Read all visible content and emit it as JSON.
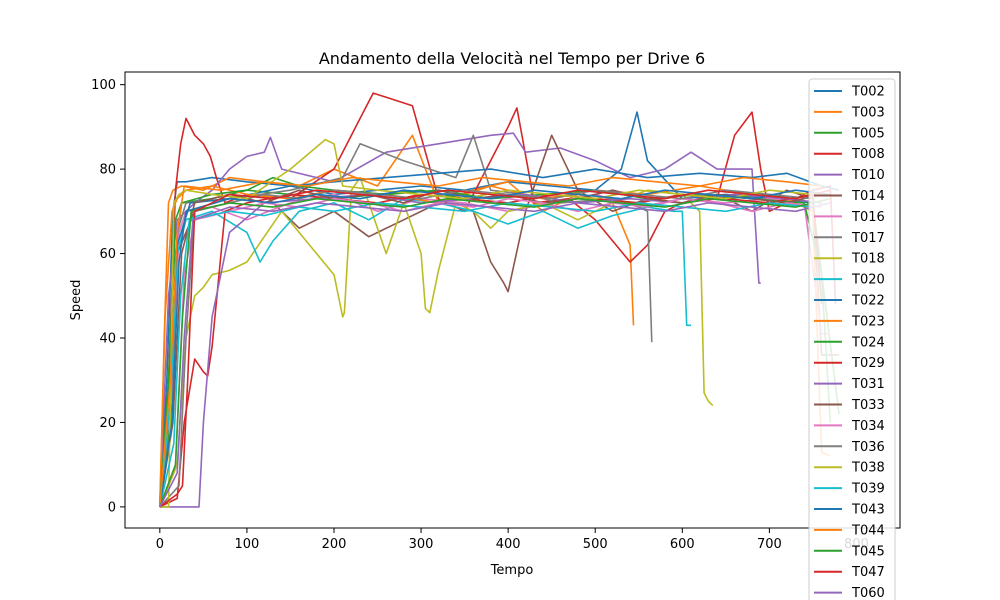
{
  "chart_data": {
    "type": "line",
    "title": "Andamento della Velocità nel Tempo per Drive 6",
    "xlabel": "Tempo",
    "ylabel": "Speed",
    "xlim": [
      -40,
      850
    ],
    "ylim": [
      -5,
      103
    ],
    "xticks": [
      0,
      100,
      200,
      300,
      400,
      500,
      600,
      700,
      800
    ],
    "xtick_labels": [
      "0",
      "100",
      "200",
      "300",
      "400",
      "500",
      "600",
      "700",
      "800"
    ],
    "yticks": [
      0,
      20,
      40,
      60,
      80,
      100
    ],
    "grid": false,
    "legend_position": "top-right",
    "palette": [
      "#1f77b4",
      "#ff7f0e",
      "#2ca02c",
      "#d62728",
      "#9467bd",
      "#8c564b",
      "#e377c2",
      "#7f7f7f",
      "#bcbd22",
      "#17becf"
    ],
    "series": [
      {
        "name": "T002",
        "x": [
          0,
          8,
          15,
          20,
          30,
          60,
          100,
          150,
          200,
          250,
          300,
          350,
          400,
          450,
          500,
          530,
          548,
          560,
          600,
          650,
          700,
          750
        ],
        "y": [
          0,
          30,
          70,
          77,
          77,
          78,
          77,
          76,
          74,
          75,
          76,
          75,
          77,
          76,
          75,
          80,
          93.5,
          82,
          73,
          74,
          73,
          72
        ]
      },
      {
        "name": "T003",
        "x": [
          0,
          5,
          10,
          15,
          25,
          50,
          80,
          120,
          160,
          200,
          250,
          290,
          320,
          360,
          400,
          440,
          480,
          520,
          540,
          544
        ],
        "y": [
          0,
          40,
          72,
          75,
          76,
          75,
          78,
          77,
          76,
          80,
          76,
          88,
          72,
          75,
          77,
          70,
          74,
          72,
          62,
          43
        ]
      },
      {
        "name": "T005",
        "x": [
          0,
          12,
          18,
          25,
          60,
          100,
          150,
          200,
          250,
          300,
          350,
          400,
          450,
          500,
          550,
          600,
          650,
          700,
          750,
          780
        ],
        "y": [
          0,
          20,
          60,
          72,
          73,
          75,
          74,
          73,
          74,
          75,
          73,
          72,
          74,
          73,
          72,
          74,
          73,
          74,
          72,
          22
        ]
      },
      {
        "name": "T008",
        "x": [
          0,
          10,
          18,
          24,
          30,
          40,
          50,
          58,
          65,
          75,
          100,
          150,
          200,
          230,
          245,
          260,
          290,
          320,
          350,
          400,
          410,
          430,
          470,
          500,
          520,
          540,
          560,
          580,
          600,
          640,
          660,
          680,
          690,
          700,
          720,
          750,
          770,
          776
        ],
        "y": [
          0,
          30,
          75,
          86,
          92,
          88,
          86,
          83,
          78,
          72,
          74,
          73,
          80,
          92,
          98,
          97,
          95,
          73,
          70,
          90,
          94.5,
          72,
          73,
          68,
          63,
          58,
          62,
          70,
          72,
          73,
          88,
          93.5,
          80,
          70,
          72,
          75,
          76,
          48
        ]
      },
      {
        "name": "T010",
        "x": [
          0,
          10,
          20,
          40,
          60,
          80,
          100,
          120,
          127,
          140,
          200,
          260,
          320,
          380,
          406,
          420,
          460,
          500,
          540,
          580,
          610,
          640,
          680,
          688,
          690
        ],
        "y": [
          0,
          50,
          68,
          72,
          75,
          80,
          83,
          84,
          87.5,
          80,
          77,
          84,
          86,
          88,
          88.5,
          84,
          85,
          82,
          78,
          80,
          84,
          80,
          80,
          53,
          53
        ]
      },
      {
        "name": "T014",
        "x": [
          0,
          12,
          20,
          40,
          80,
          120,
          160,
          200,
          240,
          280,
          320,
          360,
          380,
          395,
          400,
          420,
          450,
          480,
          520,
          560,
          600,
          640,
          680,
          720,
          750,
          760,
          780
        ],
        "y": [
          0,
          25,
          60,
          70,
          72,
          74,
          66,
          70,
          64,
          68,
          72,
          70,
          58,
          53,
          51,
          70,
          88,
          75,
          70,
          73,
          72,
          74,
          70,
          75,
          73,
          36,
          36
        ]
      },
      {
        "name": "T016",
        "x": [
          0,
          15,
          22,
          30,
          60,
          100,
          150,
          200,
          250,
          300,
          350,
          400,
          450,
          500,
          550,
          600,
          650,
          700,
          740,
          760,
          770
        ],
        "y": [
          0,
          30,
          65,
          70,
          71,
          68,
          72,
          74,
          70,
          73,
          72,
          70,
          72,
          74,
          71,
          73,
          72,
          73,
          72,
          41,
          41
        ]
      },
      {
        "name": "T017",
        "x": [
          0,
          14,
          20,
          30,
          80,
          150,
          210,
          230,
          280,
          340,
          360,
          380,
          420,
          460,
          520,
          540,
          560,
          565
        ],
        "y": [
          0,
          20,
          65,
          72,
          73,
          75,
          78,
          86,
          82,
          78,
          88,
          75,
          74,
          72,
          73,
          72,
          70,
          39
        ]
      },
      {
        "name": "T018",
        "x": [
          0,
          20,
          30,
          40,
          50,
          60,
          80,
          100,
          140,
          180,
          200,
          210,
          212,
          220,
          230,
          260,
          280,
          300,
          305,
          310,
          320,
          340,
          360,
          380,
          400,
          440,
          480,
          520,
          560,
          600,
          620,
          625,
          630,
          635
        ],
        "y": [
          0,
          10,
          40,
          50,
          52,
          55,
          56,
          58,
          70,
          60,
          55,
          45,
          46,
          75,
          78,
          60,
          72,
          60,
          47,
          46,
          56,
          72,
          70,
          66,
          70,
          72,
          68,
          72,
          75,
          74,
          70,
          27,
          25,
          24
        ]
      },
      {
        "name": "T020",
        "x": [
          0,
          12,
          20,
          30,
          60,
          100,
          115,
          130,
          160,
          200,
          240,
          280,
          320,
          360,
          400,
          440,
          480,
          520,
          560,
          590,
          600,
          605,
          610
        ],
        "y": [
          0,
          25,
          60,
          68,
          70,
          65,
          58,
          63,
          70,
          72,
          68,
          73,
          72,
          70,
          67,
          70,
          66,
          69,
          71,
          70,
          70,
          43,
          43
        ]
      },
      {
        "name": "T022",
        "x": [
          0,
          12,
          20,
          35,
          80,
          150,
          200,
          260,
          320,
          380,
          440,
          500,
          560,
          620,
          680,
          720,
          760,
          780
        ],
        "y": [
          0,
          35,
          62,
          72,
          73,
          76,
          77,
          78,
          79,
          80,
          78,
          80,
          78,
          79,
          78,
          79,
          76,
          75
        ]
      },
      {
        "name": "T023",
        "x": [
          0,
          6,
          14,
          20,
          30,
          60,
          100,
          150,
          200,
          260,
          320,
          380,
          440,
          500,
          560,
          620,
          680,
          720,
          750,
          760,
          770
        ],
        "y": [
          0,
          45,
          70,
          73,
          75,
          76,
          74,
          73,
          75,
          74,
          72,
          76,
          73,
          75,
          74,
          76,
          74,
          73,
          70,
          13,
          12
        ]
      },
      {
        "name": "T024",
        "x": [
          0,
          10,
          18,
          25,
          60,
          100,
          130,
          160,
          200,
          260,
          320,
          380,
          440,
          500,
          560,
          620,
          680,
          740,
          760,
          770
        ],
        "y": [
          0,
          30,
          68,
          72,
          74,
          75,
          78,
          76,
          75,
          74,
          75,
          73,
          74,
          75,
          73,
          74,
          73,
          72,
          55,
          20
        ]
      },
      {
        "name": "T029",
        "x": [
          0,
          20,
          28,
          40,
          50,
          55,
          60,
          75,
          100,
          150,
          200,
          250,
          300,
          350,
          400,
          450,
          500,
          550,
          600,
          650,
          700,
          750,
          760
        ],
        "y": [
          0,
          2,
          20,
          35,
          32,
          31,
          38,
          70,
          72,
          74,
          73,
          72,
          74,
          73,
          72,
          74,
          73,
          72,
          74,
          73,
          72,
          74,
          48
        ]
      },
      {
        "name": "T031",
        "x": [
          0,
          25,
          35,
          45,
          50,
          60,
          80,
          120,
          180,
          240,
          300,
          360,
          420,
          480,
          540,
          600,
          660,
          720,
          760
        ],
        "y": [
          0,
          0,
          0,
          0,
          20,
          45,
          65,
          72,
          73,
          74,
          72,
          73,
          74,
          72,
          73,
          72,
          74,
          73,
          72
        ]
      },
      {
        "name": "T033",
        "x": [
          0,
          15,
          25,
          40,
          80,
          120,
          160,
          200,
          240,
          280,
          320,
          360,
          400,
          440,
          480,
          520,
          560,
          600,
          640,
          680,
          720,
          760
        ],
        "y": [
          0,
          20,
          60,
          72,
          74,
          72,
          75,
          73,
          74,
          72,
          75,
          73,
          74,
          72,
          73,
          75,
          73,
          72,
          74,
          73,
          72,
          74
        ]
      },
      {
        "name": "T034",
        "x": [
          0,
          18,
          28,
          40,
          80,
          120,
          160,
          200,
          240,
          280,
          320,
          360,
          400,
          440,
          480,
          520,
          560,
          600,
          640,
          680,
          720,
          760
        ],
        "y": [
          0,
          10,
          55,
          68,
          70,
          72,
          71,
          73,
          72,
          70,
          72,
          71,
          73,
          72,
          70,
          72,
          71,
          73,
          72,
          70,
          72,
          71
        ]
      },
      {
        "name": "T036",
        "x": [
          0,
          22,
          30,
          40,
          80,
          120,
          160,
          200,
          250,
          300,
          350,
          400,
          450,
          500,
          550,
          600,
          650,
          700,
          750
        ],
        "y": [
          0,
          5,
          40,
          70,
          72,
          74,
          73,
          75,
          74,
          73,
          75,
          74,
          73,
          75,
          74,
          73,
          75,
          74,
          73
        ]
      },
      {
        "name": "T038",
        "x": [
          0,
          10,
          16,
          22,
          30,
          60,
          100,
          150,
          190,
          200,
          210,
          250,
          300,
          350,
          400,
          450,
          500,
          550,
          600,
          650,
          700,
          750
        ],
        "y": [
          0,
          0,
          72,
          74,
          75,
          74,
          73,
          80,
          87,
          86,
          76,
          75,
          74,
          73,
          75,
          74,
          73,
          75,
          74,
          73,
          75,
          74
        ]
      },
      {
        "name": "T039",
        "x": [
          0,
          16,
          24,
          34,
          80,
          120,
          160,
          200,
          250,
          300,
          350,
          400,
          450,
          500,
          550,
          600,
          650,
          700,
          750
        ],
        "y": [
          0,
          15,
          50,
          68,
          70,
          69,
          71,
          70,
          72,
          71,
          70,
          72,
          71,
          70,
          72,
          71,
          70,
          72,
          71
        ]
      },
      {
        "name": "T043",
        "x": [
          0,
          14,
          22,
          30,
          80,
          130,
          180,
          230,
          280,
          330,
          380,
          430,
          480,
          530,
          580,
          630,
          680,
          730,
          770
        ],
        "y": [
          0,
          20,
          58,
          70,
          73,
          72,
          74,
          73,
          75,
          74,
          73,
          75,
          74,
          73,
          75,
          74,
          73,
          75,
          74
        ]
      },
      {
        "name": "T044",
        "x": [
          0,
          12,
          20,
          28,
          70,
          120,
          170,
          220,
          270,
          320,
          370,
          420,
          470,
          520,
          570,
          620,
          670,
          720,
          760
        ],
        "y": [
          0,
          30,
          65,
          76,
          75,
          77,
          76,
          78,
          77,
          76,
          78,
          77,
          76,
          78,
          77,
          76,
          78,
          77,
          76
        ]
      },
      {
        "name": "T045",
        "x": [
          0,
          18,
          26,
          36,
          80,
          130,
          180,
          230,
          280,
          330,
          380,
          430,
          480,
          530,
          580,
          630,
          680,
          730,
          770
        ],
        "y": [
          0,
          10,
          45,
          70,
          72,
          71,
          73,
          72,
          71,
          73,
          72,
          71,
          73,
          72,
          71,
          73,
          72,
          71,
          73
        ]
      },
      {
        "name": "T047",
        "x": [
          0,
          20,
          26,
          32,
          40,
          80,
          130,
          180,
          230,
          280,
          330,
          380,
          430,
          480,
          530,
          580,
          630,
          680,
          730,
          770
        ],
        "y": [
          0,
          3,
          5,
          30,
          70,
          74,
          73,
          75,
          74,
          73,
          75,
          74,
          73,
          75,
          74,
          73,
          75,
          74,
          73,
          75
        ]
      },
      {
        "name": "T060",
        "x": [
          0,
          20,
          28,
          38,
          80,
          130,
          180,
          230,
          280,
          330,
          380,
          430,
          480,
          530,
          580,
          630,
          680,
          730,
          770
        ],
        "y": [
          0,
          8,
          40,
          68,
          71,
          70,
          72,
          71,
          70,
          72,
          71,
          70,
          72,
          71,
          70,
          72,
          71,
          70,
          72
        ]
      }
    ]
  }
}
